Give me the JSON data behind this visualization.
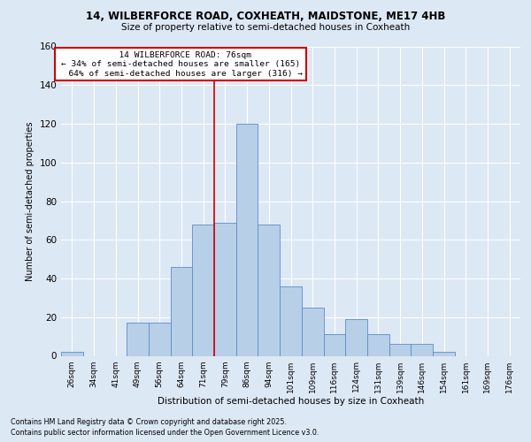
{
  "title_line1": "14, WILBERFORCE ROAD, COXHEATH, MAIDSTONE, ME17 4HB",
  "title_line2": "Size of property relative to semi-detached houses in Coxheath",
  "xlabel": "Distribution of semi-detached houses by size in Coxheath",
  "ylabel": "Number of semi-detached properties",
  "categories": [
    "26sqm",
    "34sqm",
    "41sqm",
    "49sqm",
    "56sqm",
    "64sqm",
    "71sqm",
    "79sqm",
    "86sqm",
    "94sqm",
    "101sqm",
    "109sqm",
    "116sqm",
    "124sqm",
    "131sqm",
    "139sqm",
    "146sqm",
    "154sqm",
    "161sqm",
    "169sqm",
    "176sqm"
  ],
  "values": [
    2,
    0,
    0,
    17,
    17,
    46,
    68,
    69,
    120,
    68,
    36,
    25,
    11,
    19,
    11,
    6,
    6,
    2,
    0,
    0,
    0
  ],
  "bar_color": "#b8cfe8",
  "bar_edge_color": "#5b8dc8",
  "property_label": "14 WILBERFORCE ROAD: 76sqm",
  "smaller_pct": 34,
  "smaller_count": 165,
  "larger_pct": 64,
  "larger_count": 316,
  "vline_pos": 6.5,
  "annotation_box_facecolor": "#ffffff",
  "annotation_box_edgecolor": "#cc0000",
  "background_color": "#dde8f5",
  "plot_bg_color": "#dde8f5",
  "footer_line1": "Contains HM Land Registry data © Crown copyright and database right 2025.",
  "footer_line2": "Contains public sector information licensed under the Open Government Licence v3.0.",
  "ylim_max": 160,
  "grid_color": "#ffffff",
  "yticks": [
    0,
    20,
    40,
    60,
    80,
    100,
    120,
    140,
    160
  ]
}
